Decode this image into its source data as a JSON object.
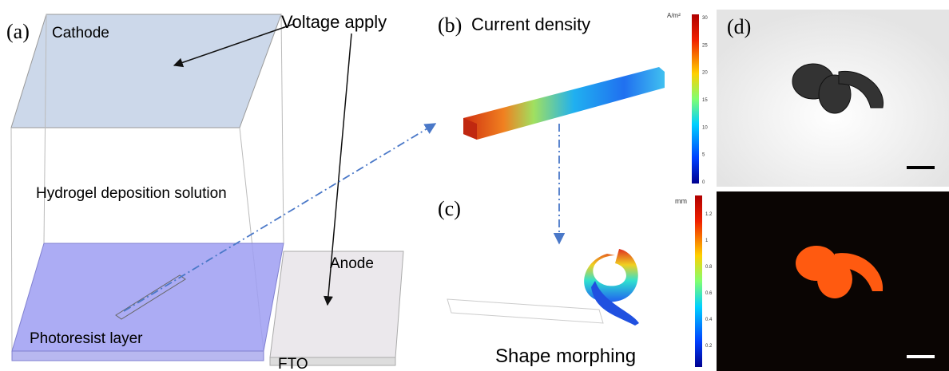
{
  "panel_a": {
    "label": "(a)",
    "cathode": "Cathode",
    "voltage": "Voltage apply",
    "solution": "Hydrogel deposition solution",
    "anode": "Anode",
    "photoresist": "Photoresist layer",
    "fto": "FTO"
  },
  "panel_b": {
    "label": "(b)",
    "title": "Current density",
    "unit": "A/m²",
    "ticks": [
      "30",
      "25",
      "20",
      "15",
      "10",
      "5",
      "0"
    ]
  },
  "panel_c": {
    "label": "(c)",
    "title": "Shape morphing",
    "unit": "mm",
    "ticks": [
      "1.2",
      "1",
      "0.8",
      "0.6",
      "0.4",
      "0.2"
    ]
  },
  "panel_d": {
    "label": "(d)"
  }
}
